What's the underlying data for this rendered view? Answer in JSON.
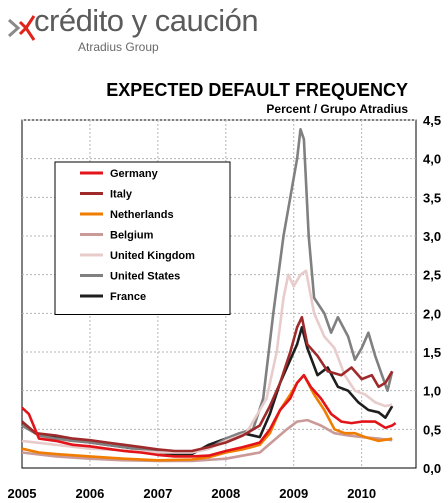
{
  "logo": {
    "brand": "crédito y caución",
    "sub": "Atradius Group",
    "mark_color": "#e2231a",
    "mark_gray": "#8a8a8a"
  },
  "chart_data": {
    "type": "line",
    "title": "EXPECTED DEFAULT FREQUENCY",
    "subtitle": "Percent  /  Grupo Atradius",
    "x_ticks": [
      "2005",
      "2006",
      "2007",
      "2008",
      "2009",
      "2010"
    ],
    "y_ticks": [
      "0,0",
      "0,5",
      "1,0",
      "1,5",
      "2,0",
      "2,5",
      "3,0",
      "3,5",
      "4,0",
      "4,5"
    ],
    "xlim": [
      2005.0,
      2010.8
    ],
    "ylim": [
      0,
      4.5
    ],
    "grid": true,
    "legend_position": "upper-left",
    "series": [
      {
        "name": "Germany",
        "color": "#e2141a",
        "points": [
          [
            2005.0,
            0.78
          ],
          [
            2005.1,
            0.7
          ],
          [
            2005.25,
            0.38
          ],
          [
            2005.5,
            0.35
          ],
          [
            2005.75,
            0.3
          ],
          [
            2006.0,
            0.28
          ],
          [
            2006.25,
            0.25
          ],
          [
            2006.5,
            0.22
          ],
          [
            2006.75,
            0.2
          ],
          [
            2007.0,
            0.17
          ],
          [
            2007.25,
            0.15
          ],
          [
            2007.5,
            0.15
          ],
          [
            2007.75,
            0.16
          ],
          [
            2008.0,
            0.22
          ],
          [
            2008.25,
            0.27
          ],
          [
            2008.5,
            0.33
          ],
          [
            2008.65,
            0.5
          ],
          [
            2008.8,
            0.75
          ],
          [
            2008.95,
            0.9
          ],
          [
            2009.05,
            1.1
          ],
          [
            2009.15,
            1.2
          ],
          [
            2009.25,
            1.05
          ],
          [
            2009.4,
            0.9
          ],
          [
            2009.55,
            0.7
          ],
          [
            2009.7,
            0.6
          ],
          [
            2009.85,
            0.58
          ],
          [
            2010.0,
            0.6
          ],
          [
            2010.2,
            0.6
          ],
          [
            2010.35,
            0.52
          ],
          [
            2010.45,
            0.55
          ],
          [
            2010.5,
            0.58
          ]
        ]
      },
      {
        "name": "Italy",
        "color": "#9e2a2b",
        "points": [
          [
            2005.0,
            0.6
          ],
          [
            2005.2,
            0.45
          ],
          [
            2005.5,
            0.42
          ],
          [
            2005.75,
            0.38
          ],
          [
            2006.0,
            0.36
          ],
          [
            2006.25,
            0.33
          ],
          [
            2006.5,
            0.3
          ],
          [
            2006.75,
            0.27
          ],
          [
            2007.0,
            0.24
          ],
          [
            2007.25,
            0.22
          ],
          [
            2007.5,
            0.22
          ],
          [
            2007.75,
            0.27
          ],
          [
            2008.0,
            0.33
          ],
          [
            2008.25,
            0.42
          ],
          [
            2008.5,
            0.55
          ],
          [
            2008.65,
            0.8
          ],
          [
            2008.8,
            1.1
          ],
          [
            2008.95,
            1.5
          ],
          [
            2009.05,
            1.82
          ],
          [
            2009.12,
            1.95
          ],
          [
            2009.2,
            1.6
          ],
          [
            2009.35,
            1.45
          ],
          [
            2009.5,
            1.25
          ],
          [
            2009.7,
            1.2
          ],
          [
            2009.85,
            1.3
          ],
          [
            2010.0,
            1.15
          ],
          [
            2010.15,
            1.2
          ],
          [
            2010.25,
            1.05
          ],
          [
            2010.35,
            1.1
          ],
          [
            2010.45,
            1.25
          ]
        ]
      },
      {
        "name": "Netherlands",
        "color": "#f07d00",
        "points": [
          [
            2005.0,
            0.25
          ],
          [
            2005.25,
            0.2
          ],
          [
            2005.5,
            0.18
          ],
          [
            2006.0,
            0.15
          ],
          [
            2006.5,
            0.12
          ],
          [
            2007.0,
            0.1
          ],
          [
            2007.5,
            0.11
          ],
          [
            2007.75,
            0.14
          ],
          [
            2008.0,
            0.2
          ],
          [
            2008.25,
            0.24
          ],
          [
            2008.5,
            0.3
          ],
          [
            2008.65,
            0.45
          ],
          [
            2008.8,
            0.75
          ],
          [
            2008.95,
            0.95
          ],
          [
            2009.05,
            1.1
          ],
          [
            2009.15,
            1.2
          ],
          [
            2009.3,
            0.95
          ],
          [
            2009.45,
            0.75
          ],
          [
            2009.6,
            0.5
          ],
          [
            2009.75,
            0.45
          ],
          [
            2009.9,
            0.45
          ],
          [
            2010.05,
            0.4
          ],
          [
            2010.25,
            0.35
          ],
          [
            2010.45,
            0.38
          ]
        ]
      },
      {
        "name": "Belgium",
        "color": "#c99a98",
        "points": [
          [
            2005.0,
            0.2
          ],
          [
            2005.5,
            0.15
          ],
          [
            2006.0,
            0.12
          ],
          [
            2006.5,
            0.1
          ],
          [
            2007.0,
            0.09
          ],
          [
            2007.5,
            0.09
          ],
          [
            2008.0,
            0.12
          ],
          [
            2008.5,
            0.2
          ],
          [
            2008.7,
            0.35
          ],
          [
            2008.9,
            0.5
          ],
          [
            2009.05,
            0.6
          ],
          [
            2009.2,
            0.62
          ],
          [
            2009.4,
            0.55
          ],
          [
            2009.6,
            0.45
          ],
          [
            2009.8,
            0.42
          ],
          [
            2010.0,
            0.4
          ],
          [
            2010.25,
            0.38
          ],
          [
            2010.45,
            0.36
          ]
        ]
      },
      {
        "name": "United Kingdom",
        "color": "#e8cccb",
        "points": [
          [
            2005.0,
            0.35
          ],
          [
            2005.5,
            0.3
          ],
          [
            2006.0,
            0.25
          ],
          [
            2006.5,
            0.23
          ],
          [
            2007.0,
            0.2
          ],
          [
            2007.5,
            0.2
          ],
          [
            2007.75,
            0.25
          ],
          [
            2008.0,
            0.35
          ],
          [
            2008.3,
            0.45
          ],
          [
            2008.6,
            0.9
          ],
          [
            2008.75,
            1.5
          ],
          [
            2008.85,
            2.2
          ],
          [
            2008.92,
            2.5
          ],
          [
            2009.0,
            2.35
          ],
          [
            2009.1,
            2.5
          ],
          [
            2009.18,
            2.55
          ],
          [
            2009.3,
            2.0
          ],
          [
            2009.45,
            1.7
          ],
          [
            2009.6,
            1.55
          ],
          [
            2009.75,
            1.2
          ],
          [
            2009.9,
            1.0
          ],
          [
            2010.05,
            0.95
          ],
          [
            2010.2,
            0.85
          ],
          [
            2010.35,
            0.8
          ],
          [
            2010.45,
            0.82
          ]
        ]
      },
      {
        "name": "United States",
        "color": "#808080",
        "points": [
          [
            2005.0,
            0.55
          ],
          [
            2005.25,
            0.42
          ],
          [
            2005.5,
            0.38
          ],
          [
            2005.75,
            0.35
          ],
          [
            2006.0,
            0.33
          ],
          [
            2006.25,
            0.3
          ],
          [
            2006.5,
            0.27
          ],
          [
            2006.75,
            0.25
          ],
          [
            2007.0,
            0.22
          ],
          [
            2007.25,
            0.2
          ],
          [
            2007.5,
            0.2
          ],
          [
            2007.75,
            0.25
          ],
          [
            2008.0,
            0.38
          ],
          [
            2008.2,
            0.45
          ],
          [
            2008.4,
            0.5
          ],
          [
            2008.55,
            0.9
          ],
          [
            2008.7,
            2.0
          ],
          [
            2008.85,
            3.0
          ],
          [
            2008.95,
            3.5
          ],
          [
            2009.05,
            4.0
          ],
          [
            2009.1,
            4.38
          ],
          [
            2009.15,
            4.25
          ],
          [
            2009.22,
            3.0
          ],
          [
            2009.3,
            2.2
          ],
          [
            2009.45,
            2.0
          ],
          [
            2009.55,
            1.75
          ],
          [
            2009.65,
            1.95
          ],
          [
            2009.8,
            1.7
          ],
          [
            2009.9,
            1.4
          ],
          [
            2010.0,
            1.55
          ],
          [
            2010.1,
            1.75
          ],
          [
            2010.2,
            1.45
          ],
          [
            2010.3,
            1.2
          ],
          [
            2010.38,
            1.0
          ],
          [
            2010.45,
            1.25
          ]
        ]
      },
      {
        "name": "France",
        "color": "#1e1e1e",
        "points": [
          [
            2005.0,
            0.6
          ],
          [
            2005.2,
            0.45
          ],
          [
            2005.5,
            0.4
          ],
          [
            2005.75,
            0.36
          ],
          [
            2006.0,
            0.33
          ],
          [
            2006.25,
            0.3
          ],
          [
            2006.5,
            0.27
          ],
          [
            2006.75,
            0.24
          ],
          [
            2007.0,
            0.2
          ],
          [
            2007.25,
            0.18
          ],
          [
            2007.5,
            0.18
          ],
          [
            2007.75,
            0.3
          ],
          [
            2008.0,
            0.38
          ],
          [
            2008.25,
            0.45
          ],
          [
            2008.5,
            0.4
          ],
          [
            2008.65,
            0.7
          ],
          [
            2008.8,
            1.1
          ],
          [
            2008.95,
            1.4
          ],
          [
            2009.05,
            1.6
          ],
          [
            2009.12,
            1.82
          ],
          [
            2009.2,
            1.55
          ],
          [
            2009.35,
            1.2
          ],
          [
            2009.5,
            1.3
          ],
          [
            2009.65,
            1.05
          ],
          [
            2009.8,
            1.0
          ],
          [
            2009.95,
            0.85
          ],
          [
            2010.1,
            0.75
          ],
          [
            2010.25,
            0.72
          ],
          [
            2010.35,
            0.65
          ],
          [
            2010.45,
            0.8
          ]
        ]
      }
    ]
  }
}
